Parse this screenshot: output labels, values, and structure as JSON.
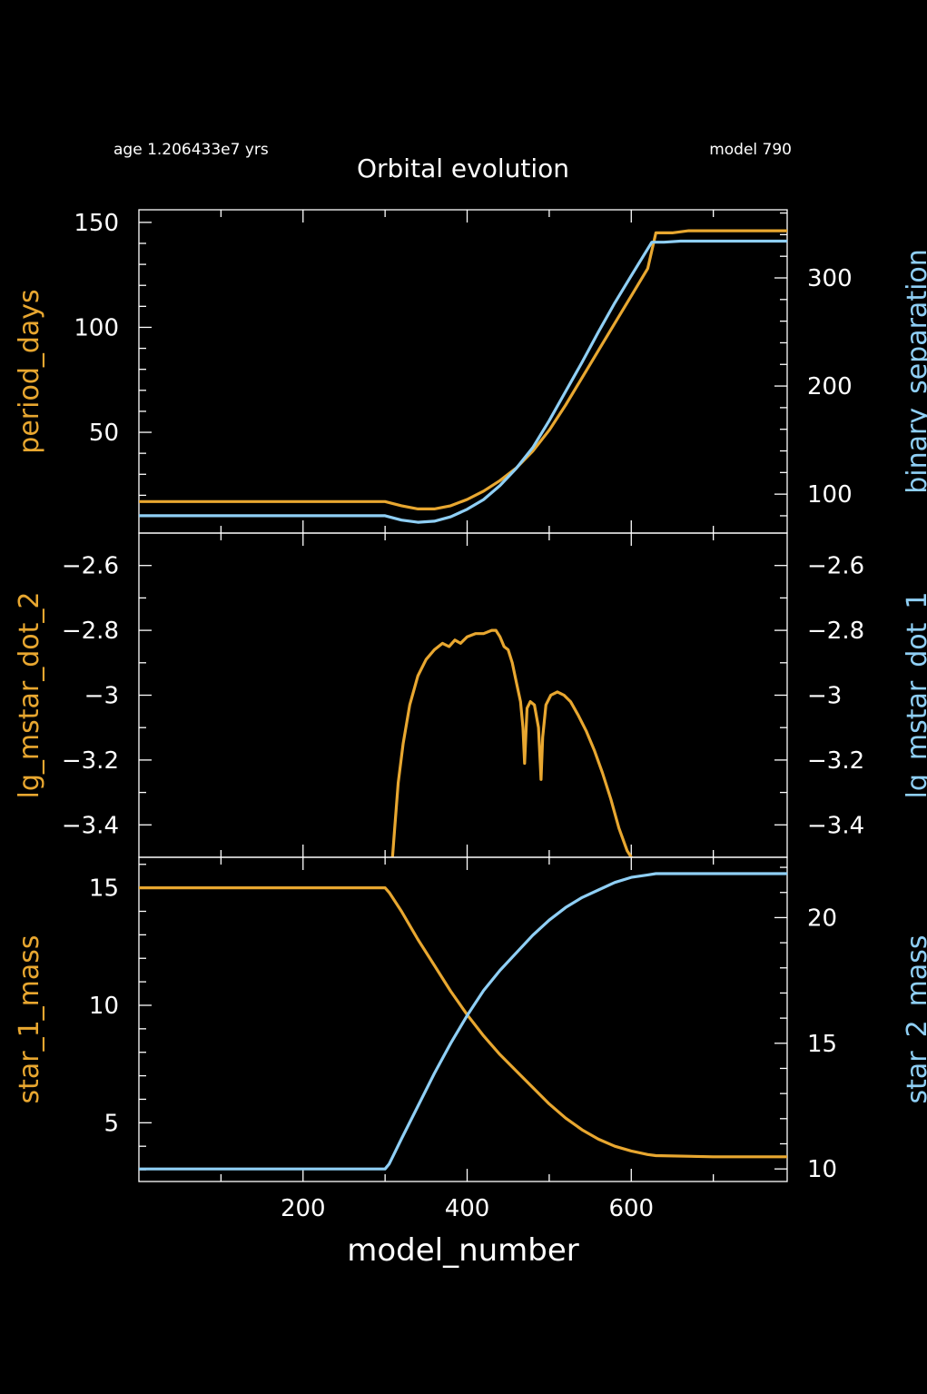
{
  "header": {
    "age_label": "age 1.206433e7 yrs",
    "model_label": "model 790",
    "title": "Orbital evolution"
  },
  "colors": {
    "background": "#000000",
    "axes": "#ffffff",
    "primary": "#e8a730",
    "secondary": "#8fcff5"
  },
  "chart_data": [
    {
      "type": "line",
      "panel": "top",
      "xlabel": "",
      "xlim": [
        0,
        790
      ],
      "ylabel_left": "period_days",
      "ylabel_right": "binary_separation",
      "ylim_left": [
        2,
        156
      ],
      "ylim_right": [
        64,
        363
      ],
      "yticks_left": [
        50,
        100,
        150
      ],
      "yticks_right": [
        100,
        200,
        300
      ],
      "series": [
        {
          "axis": "left",
          "color": "#e8a730",
          "x": [
            0,
            280,
            300,
            320,
            340,
            360,
            380,
            400,
            420,
            440,
            460,
            480,
            500,
            520,
            540,
            560,
            580,
            600,
            620,
            630,
            650,
            670,
            700,
            790
          ],
          "y": [
            17,
            17,
            17,
            15,
            13.5,
            13.5,
            15,
            18,
            22,
            27,
            33,
            41,
            51,
            63,
            76,
            89,
            102,
            115,
            128,
            145,
            145,
            146,
            146,
            146
          ]
        },
        {
          "axis": "right",
          "color": "#8fcff5",
          "x": [
            0,
            290,
            300,
            320,
            340,
            360,
            380,
            400,
            420,
            440,
            460,
            480,
            500,
            520,
            540,
            560,
            580,
            600,
            625,
            640,
            660,
            700,
            790
          ],
          "y": [
            80,
            80,
            80,
            76,
            74,
            75,
            79,
            86,
            95,
            108,
            124,
            143,
            168,
            195,
            222,
            250,
            277,
            302,
            333,
            333,
            334,
            334,
            334
          ]
        }
      ]
    },
    {
      "type": "line",
      "panel": "middle",
      "xlabel": "",
      "xlim": [
        0,
        790
      ],
      "ylabel_left": "lg_mstar_dot_2",
      "ylabel_right": "lg_mstar_dot_1",
      "ylim_left": [
        -3.5,
        -2.5
      ],
      "ylim_right": [
        -3.5,
        -2.5
      ],
      "yticks_left": [
        -2.6,
        -2.8,
        -3,
        -3.2,
        -3.4
      ],
      "yticks_right": [
        -2.6,
        -2.8,
        -3,
        -3.2,
        -3.4
      ],
      "ytick_labels": [
        "−2.6",
        "−2.8",
        "−3",
        "−3.2",
        "−3.4"
      ],
      "series": [
        {
          "axis": "left",
          "color": "#e8a730",
          "x": [
            309,
            312,
            316,
            322,
            330,
            340,
            350,
            360,
            370,
            378,
            385,
            392,
            400,
            410,
            420,
            430,
            435,
            440,
            445,
            450,
            455,
            460,
            465,
            468,
            470,
            473,
            477,
            482,
            487,
            490,
            492,
            496,
            502,
            510,
            518,
            526,
            535,
            545,
            555,
            565,
            575,
            585,
            595,
            600
          ],
          "y": [
            -3.5,
            -3.4,
            -3.27,
            -3.15,
            -3.03,
            -2.94,
            -2.89,
            -2.86,
            -2.84,
            -2.85,
            -2.83,
            -2.84,
            -2.82,
            -2.81,
            -2.81,
            -2.8,
            -2.8,
            -2.82,
            -2.85,
            -2.86,
            -2.9,
            -2.96,
            -3.02,
            -3.1,
            -3.21,
            -3.04,
            -3.02,
            -3.03,
            -3.1,
            -3.26,
            -3.13,
            -3.03,
            -3.0,
            -2.99,
            -3.0,
            -3.02,
            -3.06,
            -3.11,
            -3.17,
            -3.24,
            -3.32,
            -3.41,
            -3.48,
            -3.5
          ]
        }
      ]
    },
    {
      "type": "line",
      "panel": "bottom",
      "xlabel": "model_number",
      "xlim": [
        0,
        790
      ],
      "xticks": [
        200,
        400,
        600
      ],
      "ylabel_left": "star_1_mass",
      "ylabel_right": "star_2_mass",
      "ylim_left": [
        2.5,
        16.3
      ],
      "ylim_right": [
        9.5,
        22.4
      ],
      "yticks_left": [
        5,
        10,
        15
      ],
      "yticks_right": [
        10,
        15,
        20
      ],
      "series": [
        {
          "axis": "left",
          "color": "#e8a730",
          "x": [
            0,
            295,
            300,
            305,
            320,
            340,
            360,
            380,
            400,
            420,
            440,
            460,
            480,
            500,
            520,
            540,
            560,
            580,
            600,
            620,
            630,
            700,
            790
          ],
          "y": [
            15,
            15,
            15,
            14.8,
            14.0,
            12.8,
            11.7,
            10.6,
            9.6,
            8.7,
            7.9,
            7.2,
            6.5,
            5.8,
            5.2,
            4.7,
            4.3,
            4.0,
            3.8,
            3.65,
            3.6,
            3.55,
            3.55
          ]
        },
        {
          "axis": "right",
          "color": "#8fcff5",
          "x": [
            0,
            295,
            300,
            305,
            320,
            340,
            360,
            380,
            400,
            420,
            440,
            460,
            480,
            500,
            520,
            540,
            560,
            580,
            600,
            620,
            630,
            700,
            790
          ],
          "y": [
            10,
            10,
            10,
            10.2,
            11.2,
            12.5,
            13.8,
            15.0,
            16.1,
            17.1,
            17.9,
            18.6,
            19.3,
            19.9,
            20.4,
            20.8,
            21.1,
            21.4,
            21.6,
            21.7,
            21.75,
            21.75,
            21.75
          ]
        }
      ]
    }
  ]
}
